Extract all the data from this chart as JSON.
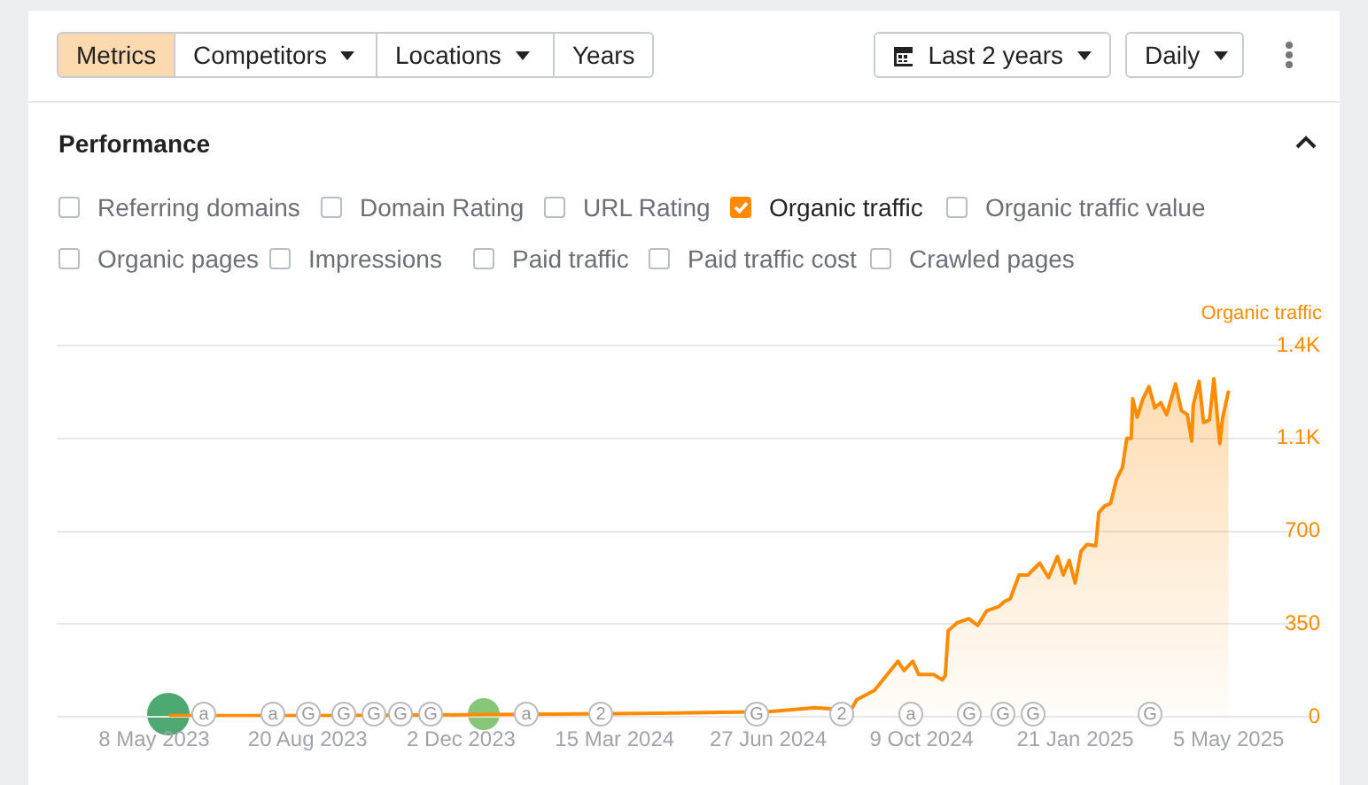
{
  "chart_data": {
    "type": "area",
    "title": "Performance",
    "ylabel": "Organic traffic",
    "annotations": [
      "Metrics",
      "Competitors",
      "Locations",
      "Years",
      "Last 2 years",
      "Daily",
      "Referring domains",
      "Domain Rating",
      "URL Rating",
      "Organic traffic",
      "Organic traffic value",
      "Organic pages",
      "Impressions",
      "Paid traffic",
      "Paid traffic cost",
      "Crawled pages",
      "a",
      "a",
      "G",
      "G",
      "G",
      "G",
      "G",
      "a",
      "2",
      "G",
      "2",
      "a",
      "G",
      "G",
      "G",
      "G"
    ],
    "x": [
      "2023-05-18",
      "2023-09-01",
      "2023-12-02",
      "2024-03-15",
      "2024-06-27",
      "2024-07-29",
      "2024-08-22",
      "2024-08-26",
      "2024-09-07",
      "2024-09-15",
      "2024-09-23",
      "2024-09-27",
      "2024-10-03",
      "2024-10-07",
      "2024-10-17",
      "2024-10-23",
      "2024-10-25",
      "2024-10-27",
      "2024-11-02",
      "2024-11-10",
      "2024-11-16",
      "2024-11-22",
      "2024-11-30",
      "2024-12-04",
      "2024-12-08",
      "2024-12-14",
      "2024-12-20",
      "2024-12-28",
      "2025-01-03",
      "2025-01-09",
      "2025-01-13",
      "2025-01-17",
      "2025-01-21",
      "2025-01-25",
      "2025-01-29",
      "2025-02-04",
      "2025-02-06",
      "2025-02-10",
      "2025-02-14",
      "2025-02-18",
      "2025-02-22",
      "2025-02-25",
      "2025-02-28",
      "2025-03-01",
      "2025-03-04",
      "2025-03-08",
      "2025-03-12",
      "2025-03-16",
      "2025-03-20",
      "2025-03-24",
      "2025-03-30",
      "2025-04-03",
      "2025-04-07",
      "2025-04-10",
      "2025-04-11",
      "2025-04-15",
      "2025-04-18",
      "2025-04-22",
      "2025-04-25",
      "2025-04-29",
      "2025-05-01",
      "2025-05-05"
    ],
    "series": [
      {
        "color": "#ff8c00",
        "values": [
          5,
          5,
          8,
          12,
          20,
          35,
          25,
          65,
          100,
          155,
          210,
          175,
          210,
          160,
          160,
          140,
          155,
          325,
          355,
          370,
          345,
          400,
          415,
          435,
          445,
          535,
          535,
          580,
          525,
          605,
          535,
          590,
          505,
          625,
          650,
          645,
          770,
          795,
          805,
          895,
          940,
          1050,
          1050,
          1200,
          1130,
          1200,
          1245,
          1165,
          1185,
          1140,
          1255,
          1155,
          1140,
          1040,
          1175,
          1265,
          1110,
          1120,
          1275,
          1030,
          1130,
          1230
        ]
      }
    ],
    "xlim": [
      "2023-03-03",
      "2025-07-06"
    ],
    "xticks": [
      {
        "value": "2023-05-08",
        "label": "8 May 2023"
      },
      {
        "value": "2023-08-20",
        "label": "20 Aug 2023"
      },
      {
        "value": "2023-12-02",
        "label": "2 Dec 2023"
      },
      {
        "value": "2024-03-15",
        "label": "15 Mar 2024"
      },
      {
        "value": "2024-06-27",
        "label": "27 Jun 2024"
      },
      {
        "value": "2024-10-09",
        "label": "9 Oct 2024"
      },
      {
        "value": "2025-01-21",
        "label": "21 Jan 2025"
      },
      {
        "value": "2025-05-05",
        "label": "5 May 2025"
      }
    ],
    "ylim": [
      0,
      1400
    ],
    "yticks": [
      0,
      350,
      700,
      {
        "value": 1050,
        "label": "1.1K"
      },
      {
        "value": 1400,
        "label": "1.4K"
      }
    ],
    "grid": "y",
    "legend": false,
    "marker": "none",
    "line_style": "solid"
  }
}
